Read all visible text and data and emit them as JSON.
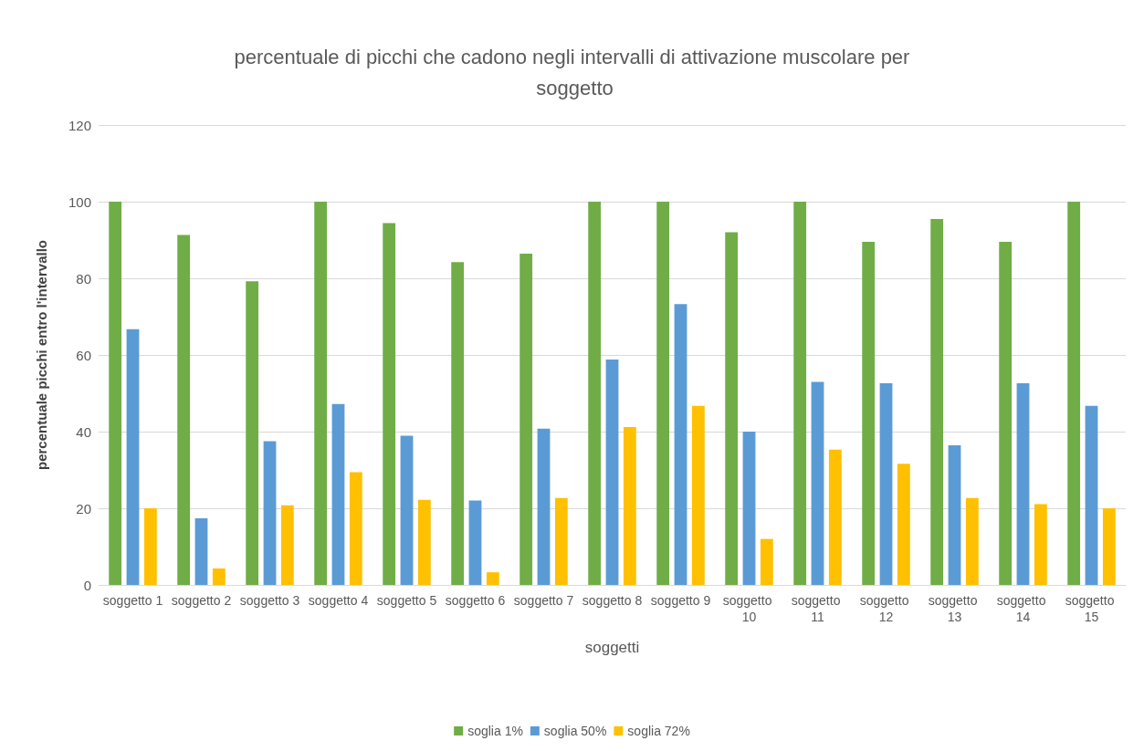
{
  "chart_data": {
    "type": "bar",
    "title": "percentuale di picchi che cadono negli intervalli di attivazione muscolare per soggetto",
    "xlabel": "soggetti",
    "ylabel": "percentuale picchi entro l'intervallo",
    "categories": [
      "soggetto 1",
      "soggetto 2",
      "soggetto 3",
      "soggetto 4",
      "soggetto 5",
      "soggetto 6",
      "soggetto 7",
      "soggetto 8",
      "soggetto 9",
      "soggetto 10",
      "soggetto 11",
      "soggetto 12",
      "soggetto 13",
      "soggetto 14",
      "soggetto 15"
    ],
    "series": [
      {
        "name": "soglia 1%",
        "color": "#70ad47",
        "values": [
          100,
          91.3,
          79.2,
          100,
          94.4,
          84.2,
          86.4,
          100,
          100,
          92,
          100,
          89.5,
          95.5,
          89.5,
          100
        ]
      },
      {
        "name": "soglia 50%",
        "color": "#5b9bd5",
        "values": [
          66.7,
          17.4,
          37.5,
          47.2,
          38.9,
          22,
          40.8,
          58.8,
          73.3,
          40,
          53,
          52.6,
          36.4,
          52.6,
          46.7
        ]
      },
      {
        "name": "soglia 72%",
        "color": "#ffc000",
        "values": [
          20,
          4.3,
          20.8,
          29.4,
          22.2,
          3.3,
          22.7,
          41.2,
          46.7,
          12,
          35.3,
          31.6,
          22.7,
          21.1,
          20
        ]
      }
    ],
    "ylim": [
      0,
      120
    ],
    "yticks": [
      0,
      20,
      40,
      60,
      80,
      100,
      120
    ],
    "grid": "y",
    "legend": "bottom"
  }
}
